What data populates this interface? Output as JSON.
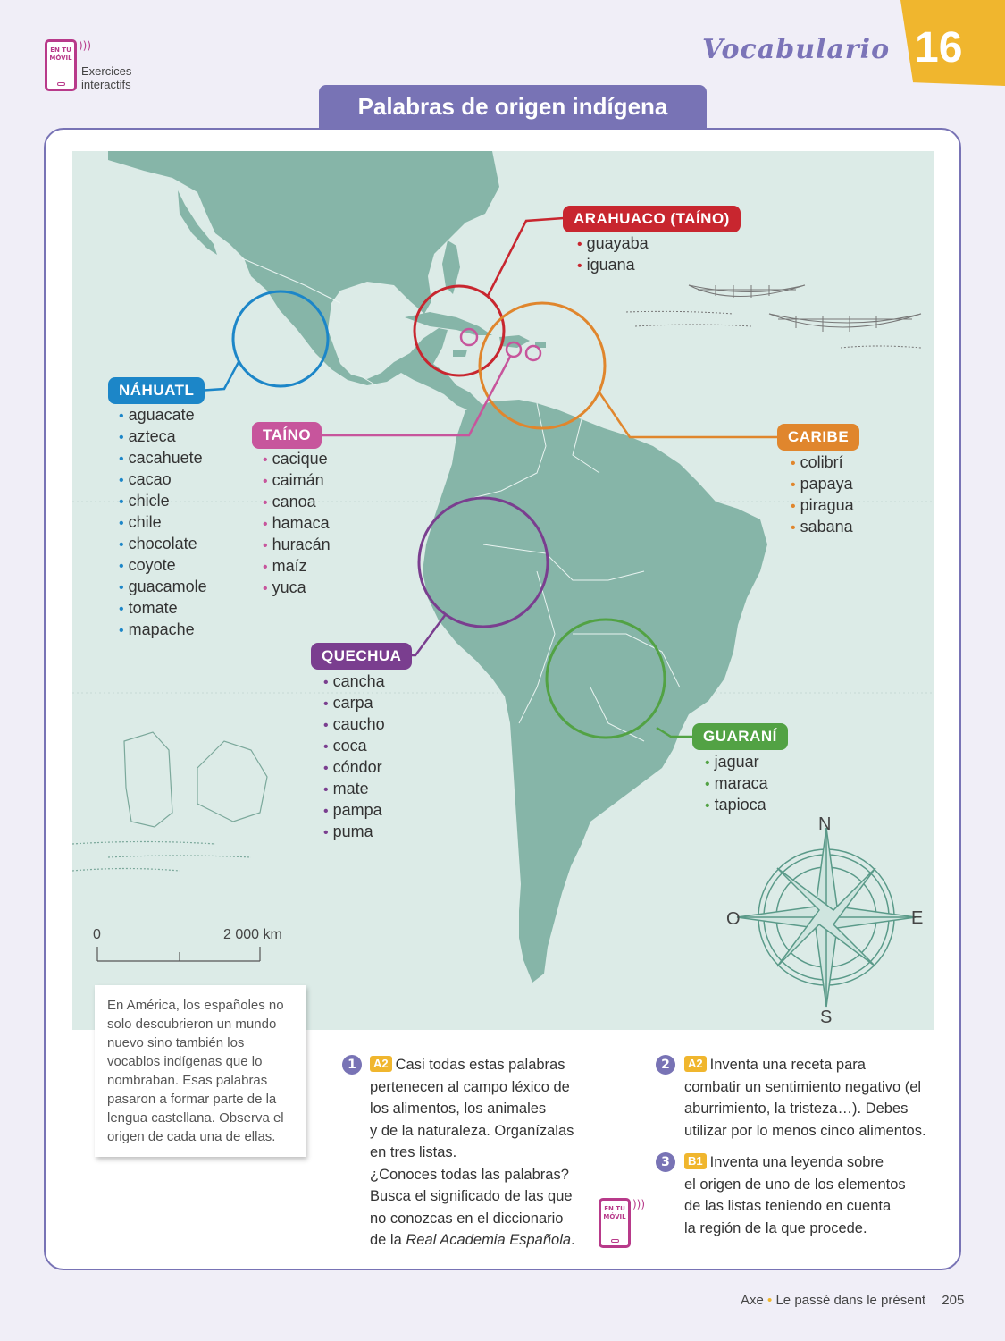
{
  "header": {
    "phone_label": "EN TU MÓVIL",
    "phone_sub": "Exercices interactifs",
    "section": "Vocabulario",
    "unit": "16",
    "title": "Palabras de origen indígena"
  },
  "map": {
    "groups": [
      {
        "key": "nahuatl",
        "label": "NÁHUATL",
        "color": "#1c86c8",
        "words": [
          "aguacate",
          "azteca",
          "cacahuete",
          "cacao",
          "chicle",
          "chile",
          "chocolate",
          "coyote",
          "guacamole",
          "tomate",
          "mapache"
        ]
      },
      {
        "key": "taino",
        "label": "TAÍNO",
        "color": "#c7559c",
        "words": [
          "cacique",
          "caimán",
          "canoa",
          "hamaca",
          "huracán",
          "maíz",
          "yuca"
        ]
      },
      {
        "key": "arahuaco",
        "label": "ARAHUACO (TAÍNO)",
        "color": "#c8262f",
        "words": [
          "guayaba",
          "iguana"
        ]
      },
      {
        "key": "caribe",
        "label": "CARIBE",
        "color": "#e0862d",
        "words": [
          "colibrí",
          "papaya",
          "piragua",
          "sabana"
        ]
      },
      {
        "key": "quechua",
        "label": "QUECHUA",
        "color": "#7a3e8f",
        "words": [
          "cancha",
          "carpa",
          "caucho",
          "coca",
          "cóndor",
          "mate",
          "pampa",
          "puma"
        ]
      },
      {
        "key": "guarani",
        "label": "GUARANÍ",
        "color": "#52a244",
        "words": [
          "jaguar",
          "maraca",
          "tapioca"
        ]
      }
    ],
    "scale": {
      "start": "0",
      "end": "2 000 km"
    },
    "compass": {
      "n": "N",
      "s": "S",
      "e": "E",
      "o": "O"
    }
  },
  "intro": "En América, los españoles no solo descubrieron un mundo nuevo sino también los vocablos indígenas que lo nombraban. Esas palabras pasaron a formar parte de la lengua castellana. Observa el origen de cada una de ellas.",
  "exercises": [
    {
      "num": "1",
      "level": "A2",
      "line1": "Casi todas estas palabras",
      "line2": "pertenecen al campo léxico de",
      "line3": "los alimentos, los animales",
      "line4": "y de la naturaleza. Organízalas",
      "line5": "en tres listas.",
      "line6": "¿Conoces todas las palabras?",
      "line7": "Busca el significado de las que",
      "line8": "no conozcas en el diccionario",
      "line9a": "de la ",
      "line9b": "Real Academia Española",
      "line9c": "."
    },
    {
      "num": "2",
      "level": "A2",
      "line1": "Inventa una receta para",
      "line2": "combatir un sentimiento negativo (el",
      "line3": "aburrimiento, la tristeza…).  Debes",
      "line4": "utilizar por lo menos cinco alimentos."
    },
    {
      "num": "3",
      "level": "B1",
      "line1": "Inventa una leyenda sobre",
      "line2": "el origen de uno de los elementos",
      "line3": "de las listas teniendo en cuenta",
      "line4": "la región de la que procede."
    }
  ],
  "footer": {
    "axe": "Axe",
    "theme": "Le passé dans le présent",
    "page": "205"
  }
}
